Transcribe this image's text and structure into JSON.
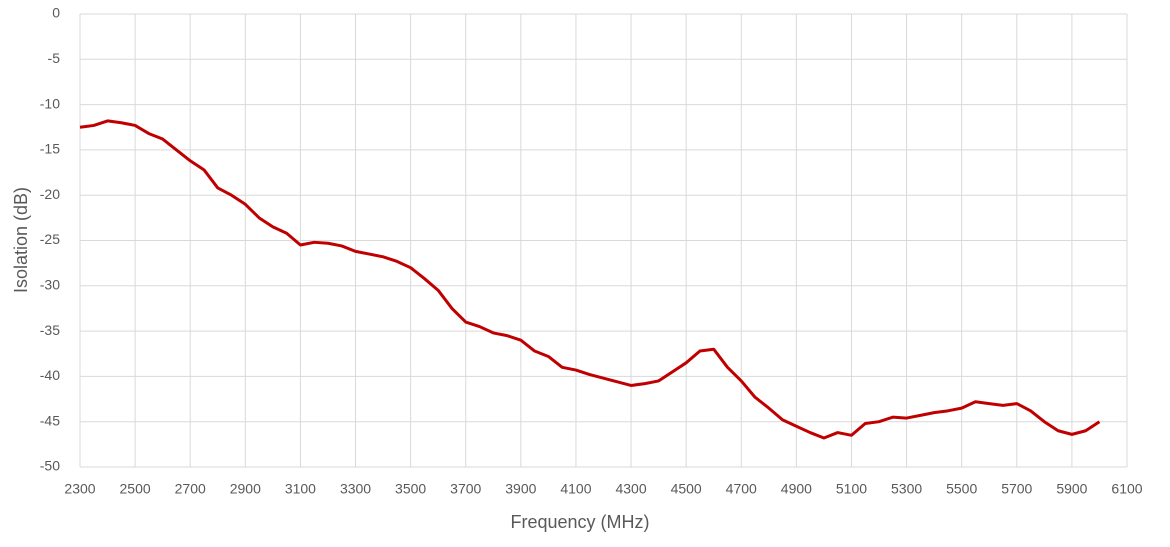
{
  "chart_data": {
    "type": "line",
    "xlabel": "Frequency (MHz)",
    "ylabel": "Isolation (dB)",
    "x": [
      2300,
      2350,
      2400,
      2450,
      2500,
      2550,
      2600,
      2650,
      2700,
      2750,
      2800,
      2850,
      2900,
      2950,
      3000,
      3050,
      3100,
      3150,
      3200,
      3250,
      3300,
      3350,
      3400,
      3450,
      3500,
      3550,
      3600,
      3650,
      3700,
      3750,
      3800,
      3850,
      3900,
      3950,
      4000,
      4050,
      4100,
      4150,
      4200,
      4250,
      4300,
      4350,
      4400,
      4450,
      4500,
      4550,
      4600,
      4650,
      4700,
      4750,
      4800,
      4850,
      4900,
      4950,
      5000,
      5050,
      5100,
      5150,
      5200,
      5250,
      5300,
      5350,
      5400,
      5450,
      5500,
      5550,
      5600,
      5650,
      5700,
      5750,
      5800,
      5850,
      5900,
      5950,
      6000
    ],
    "series": [
      {
        "name": "Isolation",
        "color": "#c00000",
        "values": [
          -12.5,
          -12.3,
          -11.8,
          -12.0,
          -12.3,
          -13.2,
          -13.8,
          -15.0,
          -16.2,
          -17.2,
          -19.2,
          -20.0,
          -21.0,
          -22.5,
          -23.5,
          -24.2,
          -25.5,
          -25.2,
          -25.3,
          -25.6,
          -26.2,
          -26.5,
          -26.8,
          -27.3,
          -28.0,
          -29.2,
          -30.5,
          -32.5,
          -34.0,
          -34.5,
          -35.2,
          -35.5,
          -36.0,
          -37.2,
          -37.8,
          -39.0,
          -39.3,
          -39.8,
          -40.2,
          -40.6,
          -41.0,
          -40.8,
          -40.5,
          -39.5,
          -38.5,
          -37.2,
          -37.0,
          -39.0,
          -40.5,
          -42.3,
          -43.5,
          -44.8,
          -45.5,
          -46.2,
          -46.8,
          -46.2,
          -46.5,
          -45.2,
          -45.0,
          -44.5,
          -44.6,
          -44.3,
          -44.0,
          -43.8,
          -43.5,
          -42.8,
          -43.0,
          -43.2,
          -43.0,
          -43.8,
          -45.0,
          -46.0,
          -46.4,
          -46.0,
          -45.0
        ]
      }
    ],
    "xlim": [
      2300,
      6100
    ],
    "xticks": [
      2300,
      2500,
      2700,
      2900,
      3100,
      3300,
      3500,
      3700,
      3900,
      4100,
      4300,
      4500,
      4700,
      4900,
      5100,
      5300,
      5500,
      5700,
      5900,
      6100
    ],
    "ylim": [
      -50,
      0
    ],
    "yticks": [
      0,
      -5,
      -10,
      -15,
      -20,
      -25,
      -30,
      -35,
      -40,
      -45,
      -50
    ],
    "grid": true
  }
}
